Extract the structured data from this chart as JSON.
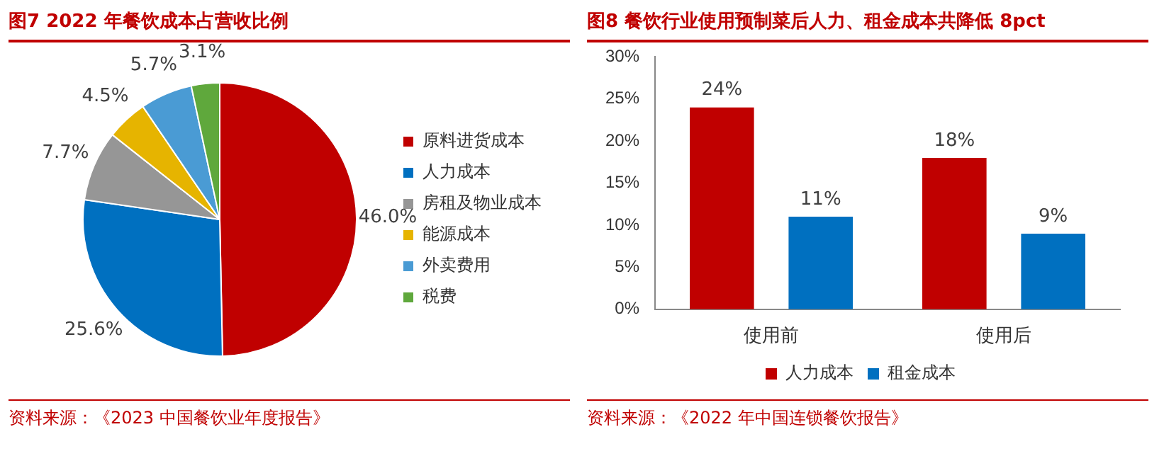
{
  "chart_data": [
    {
      "type": "pie",
      "title": "图7  2022 年餐饮成本占营收比例",
      "categories": [
        "原料进货成本",
        "人力成本",
        "房租及物业成本",
        "能源成本",
        "外卖费用",
        "税费"
      ],
      "values": [
        46.0,
        25.6,
        7.7,
        4.5,
        5.7,
        3.1
      ],
      "colors": [
        "#c00000",
        "#0070c0",
        "#969696",
        "#e6b400",
        "#4a9bd4",
        "#5fa83c"
      ],
      "value_labels": [
        "46.0%",
        "25.6%",
        "7.7%",
        "4.5%",
        "5.7%",
        "3.1%"
      ],
      "legend": "right",
      "annotations": [
        "资料来源：《2023 中国餐饮业年度报告》"
      ]
    },
    {
      "type": "bar",
      "title": "图8  餐饮行业使用预制菜后人力、租金成本共降低 8pct",
      "categories": [
        "使用前",
        "使用后"
      ],
      "series": [
        {
          "name": "人力成本",
          "color": "#c00000",
          "values": [
            24,
            18
          ],
          "value_labels": [
            "24%",
            "18%"
          ]
        },
        {
          "name": "租金成本",
          "color": "#0070c0",
          "values": [
            11,
            9
          ],
          "value_labels": [
            "11%",
            "9%"
          ]
        }
      ],
      "ylim": [
        0,
        30
      ],
      "yticks": [
        {
          "value": 0,
          "label": "0%"
        },
        {
          "value": 5,
          "label": "5%"
        },
        {
          "value": 10,
          "label": "10%"
        },
        {
          "value": 15,
          "label": "15%"
        },
        {
          "value": 20,
          "label": "20%"
        },
        {
          "value": 25,
          "label": "25%"
        },
        {
          "value": 30,
          "label": "30%"
        }
      ],
      "grid": false,
      "legend": "bottom",
      "annotations": [
        "资料来源：《2022 年中国连锁餐饮报告》"
      ]
    }
  ]
}
